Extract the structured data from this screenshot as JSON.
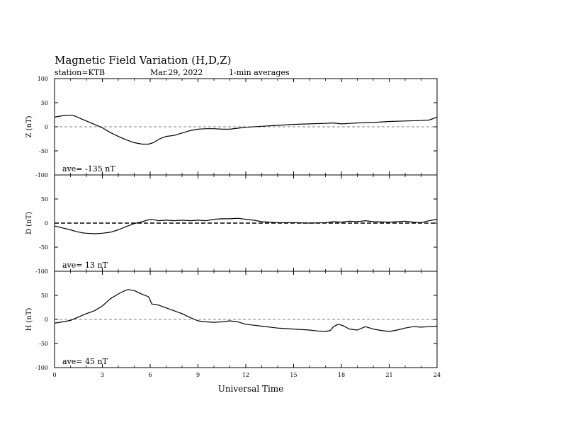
{
  "header": {
    "title": "Magnetic Field Variation (H,D,Z)",
    "station": "station=KTB",
    "date": "Mar.29, 2022",
    "averaging": "1-min averages"
  },
  "chart_data": {
    "type": "line",
    "xlabel": "Universal Time",
    "xlim": [
      0,
      24
    ],
    "xticks": [
      0,
      3,
      6,
      9,
      12,
      15,
      18,
      21,
      24
    ],
    "grid": false,
    "panels": [
      {
        "id": "Z",
        "ylabel": "Z (nT)",
        "ylim": [
          -100,
          100
        ],
        "yticks": [
          100,
          50,
          0,
          -50,
          -100
        ],
        "average_label": "ave= -135 nT",
        "zero_line": "dashed",
        "series": [
          {
            "x": [
              0,
              0.5,
              1.0,
              1.3,
              1.7,
              2.0,
              2.5,
              3.0,
              3.5,
              4.0,
              4.5,
              5.0,
              5.5,
              5.9,
              6.2,
              6.6,
              7.0,
              7.5,
              8.0,
              8.5,
              9.0,
              9.5,
              10.0,
              10.5,
              11.0,
              11.5,
              12.0,
              13.0,
              14.0,
              15.0,
              16.0,
              17.0,
              17.5,
              18.0,
              18.5,
              19.0,
              20.0,
              21.0,
              22.0,
              23.0,
              23.5,
              24.0
            ],
            "y": [
              20,
              23,
              24,
              22,
              16,
              12,
              5,
              -2,
              -12,
              -20,
              -27,
              -33,
              -36,
              -36,
              -33,
              -25,
              -20,
              -18,
              -13,
              -8,
              -5,
              -4,
              -4,
              -5,
              -5,
              -3,
              -1,
              1,
              3,
              5,
              6,
              7,
              8,
              6,
              7,
              8,
              9,
              11,
              12,
              13,
              14,
              20
            ]
          }
        ]
      },
      {
        "id": "D",
        "ylabel": "D (nT)",
        "ylim": [
          -100,
          100
        ],
        "yticks": [
          100,
          50,
          0,
          -50,
          -100
        ],
        "average_label": "ave= 13    nT",
        "zero_line": "bold-dashed",
        "series": [
          {
            "x": [
              0,
              0.5,
              1.0,
              1.3,
              1.7,
              2.0,
              2.5,
              3.0,
              3.5,
              4.0,
              4.5,
              5.0,
              5.5,
              5.8,
              6.1,
              6.5,
              7.0,
              7.5,
              8.0,
              8.5,
              9.0,
              9.5,
              10.0,
              10.5,
              11.0,
              11.5,
              12.0,
              12.5,
              13.0,
              14.0,
              15.0,
              16.0,
              17.0,
              17.5,
              18.0,
              18.5,
              19.0,
              19.5,
              20.0,
              21.0,
              21.5,
              22.0,
              22.5,
              23.0,
              23.5,
              24.0
            ],
            "y": [
              -6,
              -10,
              -14,
              -17,
              -20,
              -21,
              -22,
              -21,
              -19,
              -14,
              -7,
              -1,
              3,
              6,
              8,
              5,
              6,
              5,
              6,
              5,
              6,
              5,
              8,
              9,
              9,
              10,
              8,
              6,
              3,
              1,
              1,
              0,
              1,
              3,
              2,
              4,
              3,
              5,
              3,
              2,
              3,
              4,
              2,
              1,
              5,
              8
            ]
          }
        ]
      },
      {
        "id": "H",
        "ylabel": "H (nT)",
        "ylim": [
          -100,
          100
        ],
        "yticks": [
          100,
          50,
          0,
          -50,
          -100
        ],
        "average_label": "ave= 45    nT",
        "zero_line": "dashed",
        "series": [
          {
            "x": [
              0,
              0.5,
              1.0,
              1.5,
              2.0,
              2.5,
              3.0,
              3.5,
              4.0,
              4.3,
              4.6,
              5.0,
              5.5,
              5.9,
              6.1,
              6.5,
              7.0,
              7.5,
              8.0,
              8.5,
              9.0,
              9.5,
              10.0,
              10.5,
              11.0,
              11.5,
              12.0,
              12.5,
              13.0,
              13.5,
              14.0,
              15.0,
              16.0,
              16.5,
              17.0,
              17.3,
              17.5,
              17.8,
              18.1,
              18.5,
              19.0,
              19.5,
              20.0,
              20.5,
              21.0,
              21.5,
              22.0,
              22.5,
              23.0,
              23.5,
              24.0
            ],
            "y": [
              -8,
              -5,
              -2,
              5,
              12,
              18,
              28,
              43,
              53,
              58,
              62,
              60,
              52,
              47,
              32,
              30,
              24,
              18,
              12,
              4,
              -3,
              -5,
              -6,
              -5,
              -3,
              -5,
              -10,
              -12,
              -14,
              -16,
              -18,
              -20,
              -22,
              -24,
              -25,
              -23,
              -15,
              -10,
              -13,
              -20,
              -22,
              -15,
              -20,
              -23,
              -25,
              -22,
              -18,
              -15,
              -16,
              -15,
              -14
            ]
          }
        ]
      }
    ]
  }
}
